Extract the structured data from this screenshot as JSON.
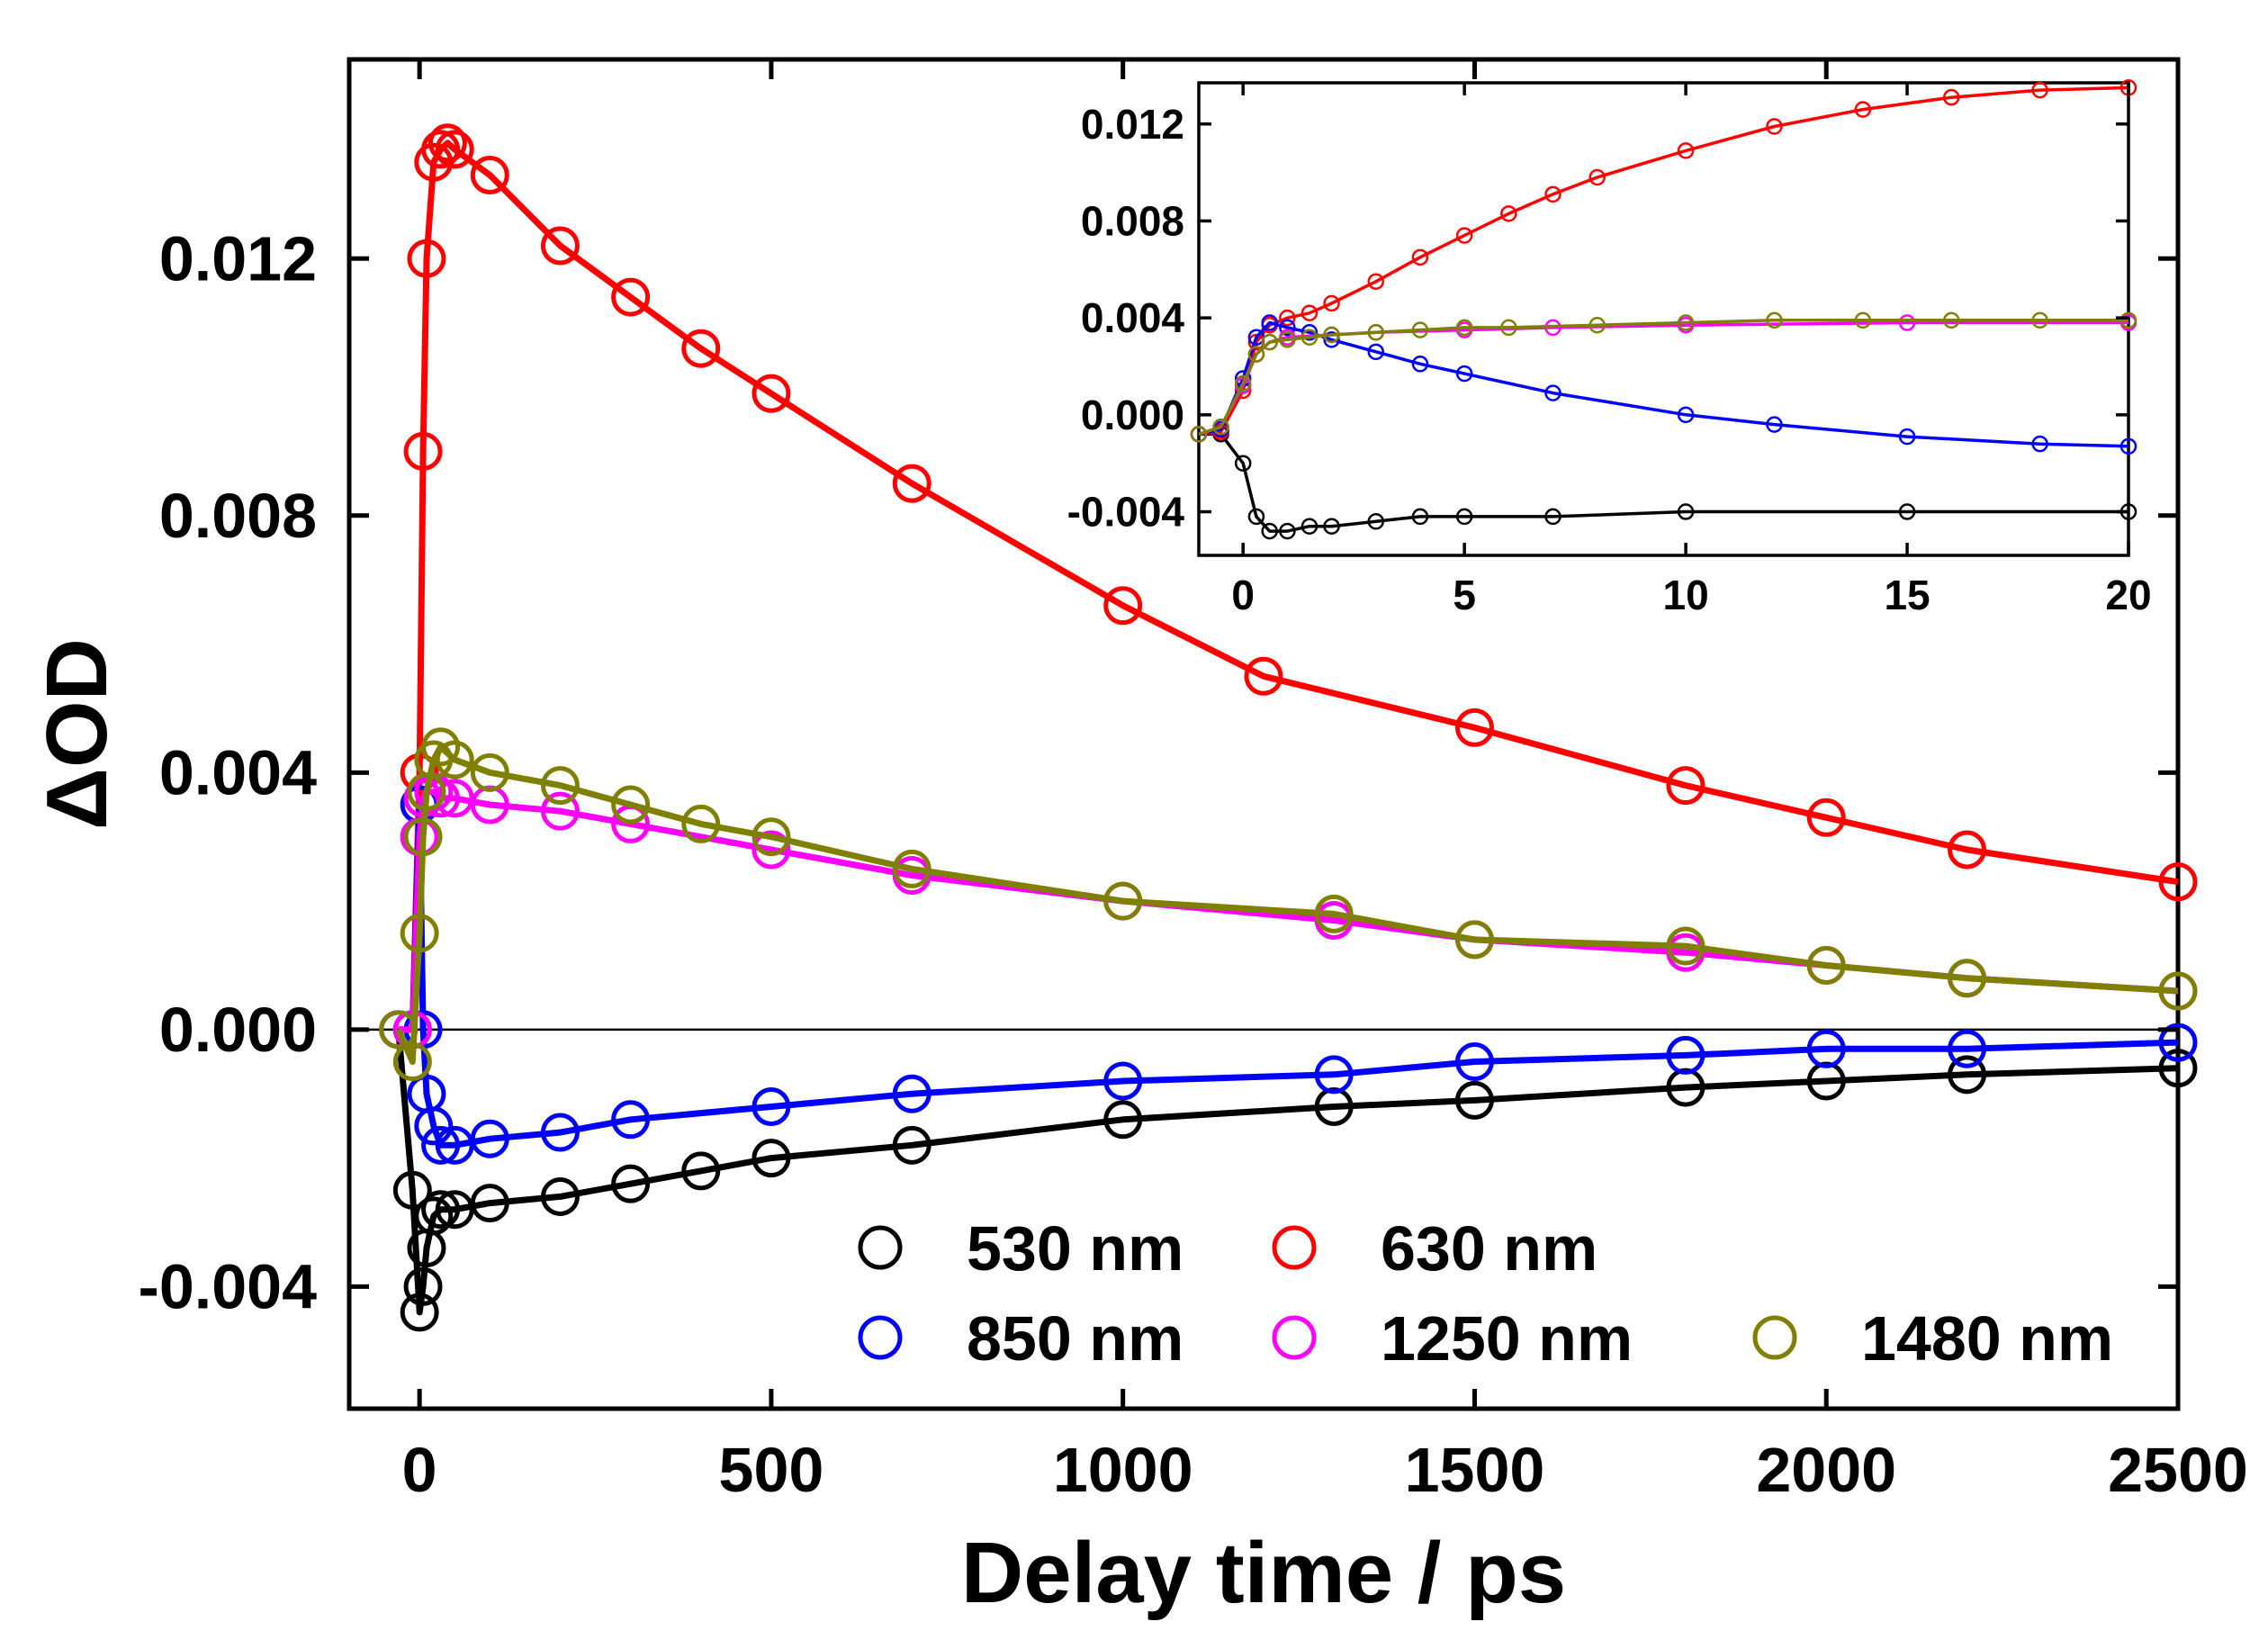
{
  "chart_data": [
    {
      "type": "scatter",
      "xlabel": "Delay time / ps",
      "ylabel": "ΔOD",
      "xlim": [
        -100,
        2500
      ],
      "ylim": [
        -0.0059,
        0.0151
      ],
      "xticks": [
        0,
        500,
        1000,
        1500,
        2000,
        2500
      ],
      "xtick_labels": [
        "0",
        "500",
        "1000",
        "1500",
        "2000",
        "2500"
      ],
      "yticks": [
        -0.004,
        0.0,
        0.004,
        0.008,
        0.012
      ],
      "ytick_labels": [
        "-0.004",
        "0.000",
        "0.004",
        "0.008",
        "0.012"
      ],
      "zero_line": true,
      "grid": false,
      "legend_position": "bottom-right",
      "legend": [
        "530 nm",
        "630 nm",
        "850 nm",
        "1250 nm",
        "1480 nm"
      ],
      "series": [
        {
          "name": "530 nm",
          "color": "#000000",
          "marker": "open-circle",
          "fit_line": true,
          "x": [
            -30,
            -10,
            0,
            5,
            10,
            20,
            30,
            50,
            100,
            200,
            300,
            400,
            500,
            700,
            1000,
            1300,
            1500,
            1800,
            2000,
            2200,
            2500
          ],
          "y": [
            0,
            -0.0025,
            -0.0044,
            -0.004,
            -0.0034,
            -0.0029,
            -0.0028,
            -0.0028,
            -0.0027,
            -0.0026,
            -0.0024,
            -0.0022,
            -0.002,
            -0.0018,
            -0.0014,
            -0.0012,
            -0.0011,
            -0.0009,
            -0.0008,
            -0.0007,
            -0.0006
          ]
        },
        {
          "name": "630 nm",
          "color": "#ff0000",
          "marker": "open-circle",
          "fit_line": true,
          "x": [
            -30,
            -10,
            0,
            5,
            10,
            20,
            30,
            40,
            50,
            100,
            200,
            300,
            400,
            500,
            700,
            1000,
            1200,
            1500,
            1800,
            2000,
            2200,
            2500
          ],
          "y": [
            0,
            0.0,
            0.004,
            0.009,
            0.012,
            0.0135,
            0.0137,
            0.0138,
            0.0137,
            0.0133,
            0.0122,
            0.0114,
            0.0106,
            0.0099,
            0.0085,
            0.0066,
            0.0055,
            0.0047,
            0.0038,
            0.0033,
            0.0028,
            0.0023
          ]
        },
        {
          "name": "850 nm",
          "color": "#0000ff",
          "marker": "open-circle",
          "fit_line": true,
          "x": [
            -30,
            -10,
            0,
            5,
            10,
            20,
            30,
            50,
            100,
            200,
            300,
            500,
            700,
            1000,
            1300,
            1500,
            1800,
            2000,
            2200,
            2500
          ],
          "y": [
            0,
            0.0,
            0.0035,
            0.0,
            -0.001,
            -0.0015,
            -0.0018,
            -0.0018,
            -0.0017,
            -0.0016,
            -0.0014,
            -0.0012,
            -0.001,
            -0.0008,
            -0.0007,
            -0.0005,
            -0.0004,
            -0.0003,
            -0.0003,
            -0.0002
          ]
        },
        {
          "name": "1250 nm",
          "color": "#ff00ff",
          "marker": "open-circle",
          "fit_line": true,
          "x": [
            -30,
            -10,
            0,
            5,
            10,
            20,
            30,
            50,
            100,
            200,
            300,
            500,
            700,
            1000,
            1300,
            1500,
            1800,
            2000,
            2200,
            2500
          ],
          "y": [
            0,
            0.0,
            0.003,
            0.0036,
            0.0037,
            0.0037,
            0.0036,
            0.0036,
            0.0035,
            0.0034,
            0.0032,
            0.0028,
            0.0024,
            0.002,
            0.0017,
            0.0014,
            0.0012,
            0.001,
            0.0008,
            0.0006
          ]
        },
        {
          "name": "1480 nm",
          "color": "#808000",
          "marker": "open-circle",
          "fit_line": true,
          "x": [
            -30,
            -10,
            0,
            5,
            10,
            20,
            30,
            50,
            100,
            200,
            300,
            400,
            500,
            700,
            1000,
            1300,
            1500,
            1800,
            2000,
            2200,
            2500
          ],
          "y": [
            0,
            -0.0005,
            0.0015,
            0.003,
            0.0037,
            0.0042,
            0.0044,
            0.0042,
            0.004,
            0.0038,
            0.0035,
            0.0032,
            0.003,
            0.0025,
            0.002,
            0.0018,
            0.0014,
            0.0013,
            0.001,
            0.0008,
            0.0006
          ]
        }
      ]
    },
    {
      "type": "scatter",
      "role": "inset",
      "xlabel": "",
      "ylabel": "",
      "xlim": [
        -1,
        20
      ],
      "ylim": [
        -0.0058,
        0.0137
      ],
      "xticks": [
        0,
        5,
        10,
        15,
        20
      ],
      "xtick_labels": [
        "0",
        "5",
        "10",
        "15",
        "20"
      ],
      "yticks": [
        -0.004,
        0.0,
        0.004,
        0.008,
        0.012
      ],
      "ytick_labels": [
        "-0.004",
        "0.000",
        "0.004",
        "0.008",
        "0.012"
      ],
      "series": [
        {
          "name": "530 nm",
          "color": "#000000",
          "marker": "open-circle",
          "fit_line": true,
          "x": [
            -1,
            -0.5,
            0,
            0.3,
            0.6,
            1,
            1.5,
            2,
            3,
            4,
            5,
            7,
            10,
            15,
            20
          ],
          "y": [
            -0.0008,
            -0.0008,
            -0.002,
            -0.0042,
            -0.0048,
            -0.0048,
            -0.0046,
            -0.0046,
            -0.0044,
            -0.0042,
            -0.0042,
            -0.0042,
            -0.004,
            -0.004,
            -0.004
          ]
        },
        {
          "name": "630 nm",
          "color": "#ff0000",
          "marker": "open-circle",
          "fit_line": true,
          "x": [
            -1,
            -0.5,
            0,
            0.3,
            0.6,
            1,
            1.5,
            2,
            3,
            4,
            5,
            6,
            7,
            8,
            10,
            12,
            14,
            16,
            18,
            20
          ],
          "y": [
            -0.0008,
            -0.0007,
            0.001,
            0.003,
            0.0037,
            0.004,
            0.0042,
            0.0046,
            0.0055,
            0.0065,
            0.0074,
            0.0083,
            0.0091,
            0.0098,
            0.0109,
            0.0119,
            0.0126,
            0.0131,
            0.0134,
            0.0135
          ]
        },
        {
          "name": "850 nm",
          "color": "#0000ff",
          "marker": "open-circle",
          "fit_line": true,
          "x": [
            -1,
            -0.5,
            0,
            0.3,
            0.6,
            1,
            1.5,
            2,
            3,
            4,
            5,
            7,
            10,
            12,
            15,
            18,
            20
          ],
          "y": [
            -0.0008,
            -0.0006,
            0.0015,
            0.0032,
            0.0038,
            0.0036,
            0.0034,
            0.0031,
            0.0026,
            0.0021,
            0.0017,
            0.0009,
            0.0,
            -0.0004,
            -0.0009,
            -0.0012,
            -0.0013
          ]
        },
        {
          "name": "1250 nm",
          "color": "#ff00ff",
          "marker": "open-circle",
          "fit_line": true,
          "x": [
            -1,
            -0.5,
            0,
            0.3,
            0.6,
            1,
            2,
            3,
            5,
            7,
            10,
            15,
            20
          ],
          "y": [
            -0.0008,
            -0.0005,
            0.0012,
            0.0025,
            0.003,
            0.0032,
            0.0033,
            0.0034,
            0.0035,
            0.0036,
            0.0037,
            0.0038,
            0.0038
          ]
        },
        {
          "name": "1480 nm",
          "color": "#808000",
          "marker": "open-circle",
          "fit_line": true,
          "x": [
            -1,
            -0.5,
            0,
            0.3,
            0.6,
            1,
            1.5,
            2,
            3,
            4,
            5,
            6,
            8,
            10,
            12,
            14,
            16,
            18,
            20
          ],
          "y": [
            -0.0008,
            -0.0005,
            0.0013,
            0.0025,
            0.003,
            0.0031,
            0.0032,
            0.0033,
            0.0034,
            0.0035,
            0.0036,
            0.0036,
            0.0037,
            0.0038,
            0.0039,
            0.0039,
            0.0039,
            0.0039,
            0.0039
          ]
        }
      ]
    }
  ]
}
